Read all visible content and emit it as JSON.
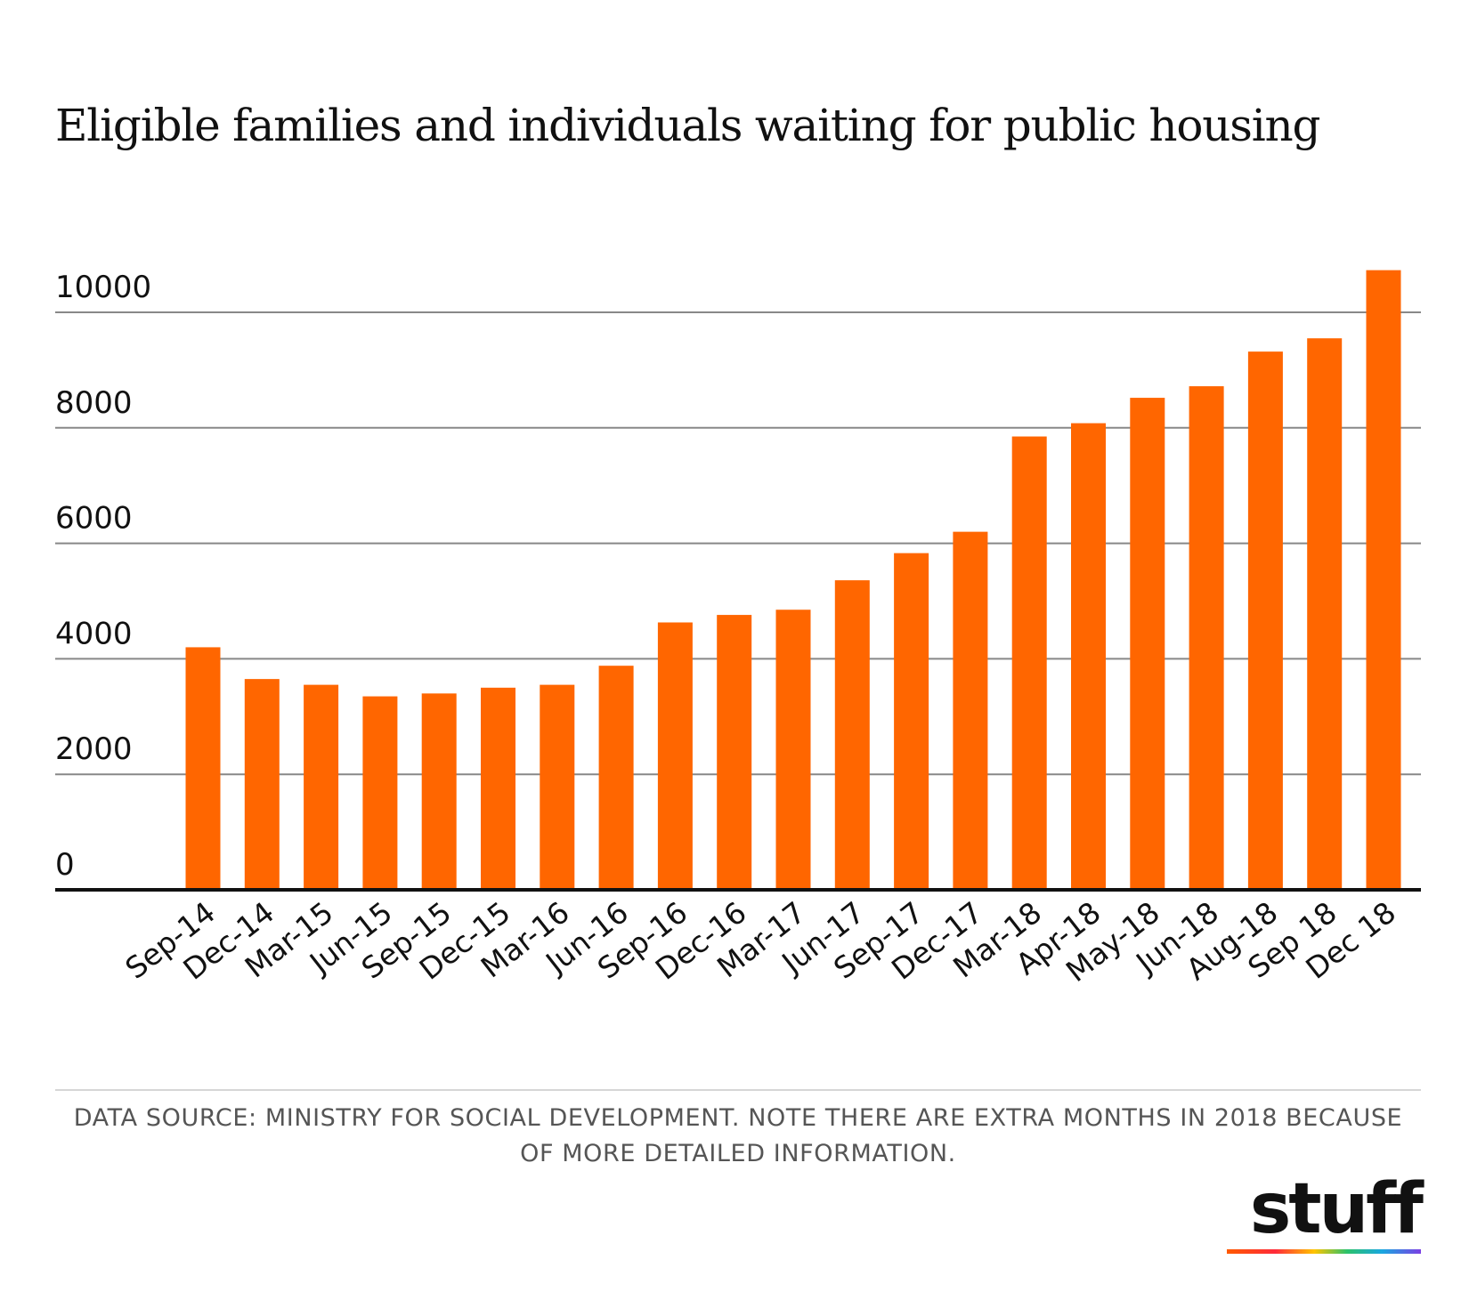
{
  "chart_data": {
    "type": "bar",
    "title": "Eligible families and individuals waiting for public housing",
    "categories": [
      "Sep-14",
      "Dec-14",
      "Mar-15",
      "Jun-15",
      "Sep-15",
      "Dec-15",
      "Mar-16",
      "Jun-16",
      "Sep-16",
      "Dec-16",
      "Mar-17",
      "Jun-17",
      "Sep-17",
      "Dec-17",
      "Mar-18",
      "Apr-18",
      "May-18",
      "Jun-18",
      "Aug-18",
      "Sep 18",
      "Dec 18"
    ],
    "values": [
      4200,
      3650,
      3550,
      3350,
      3400,
      3500,
      3550,
      3880,
      4630,
      4760,
      4850,
      5360,
      5830,
      6200,
      7850,
      8080,
      8520,
      8720,
      9320,
      9550,
      10730
    ],
    "ylim": [
      0,
      11200
    ],
    "yticks": [
      0,
      2000,
      4000,
      6000,
      8000,
      10000
    ],
    "xlabel": "",
    "ylabel": "",
    "grid": true,
    "bar_color": "#ff6600",
    "gridline_color": "#888888",
    "baseline_color": "#111111"
  },
  "footnote": "DATA SOURCE: MINISTRY FOR SOCIAL DEVELOPMENT. NOTE THERE ARE EXTRA MONTHS IN 2018 BECAUSE OF MORE DETAILED INFORMATION.",
  "logo": {
    "wordmark": "stuff"
  }
}
